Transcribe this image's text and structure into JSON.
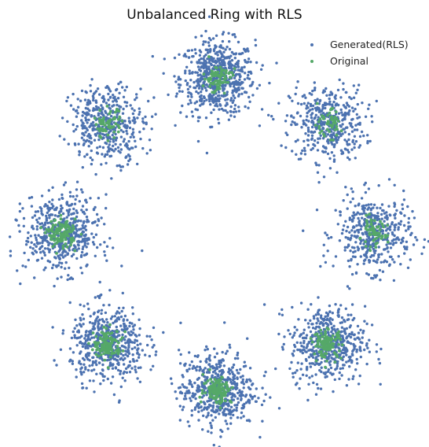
{
  "chart_data": {
    "type": "scatter",
    "title": "Unbalanced Ring with RLS",
    "xlabel": "",
    "ylabel": "",
    "axes_visible": false,
    "grid": false,
    "legend_position": "top-right",
    "xlim": [
      -1.45,
      1.45
    ],
    "ylim": [
      -1.45,
      1.45
    ],
    "ring_radius": 1.0,
    "series": [
      {
        "name": "Generated(RLS)",
        "color": "#4c72b0",
        "spread": 0.12,
        "clusters": [
          {
            "center": [
              0.0,
              1.0
            ],
            "points": 620
          },
          {
            "center": [
              0.707,
              0.707
            ],
            "points": 430
          },
          {
            "center": [
              1.0,
              0.0
            ],
            "points": 430
          },
          {
            "center": [
              0.707,
              -0.707
            ],
            "points": 520
          },
          {
            "center": [
              0.0,
              -1.0
            ],
            "points": 520
          },
          {
            "center": [
              -0.707,
              -0.707
            ],
            "points": 520
          },
          {
            "center": [
              -1.0,
              0.0
            ],
            "points": 520
          },
          {
            "center": [
              -0.707,
              0.707
            ],
            "points": 430
          }
        ],
        "outliers": [
          [
            -0.3,
            -0.93
          ]
        ]
      },
      {
        "name": "Original",
        "color": "#55a868",
        "spread": 0.045,
        "clusters": [
          {
            "center": [
              0.0,
              1.0
            ],
            "points": 80
          },
          {
            "center": [
              0.707,
              0.707
            ],
            "points": 50
          },
          {
            "center": [
              1.0,
              0.0
            ],
            "points": 60
          },
          {
            "center": [
              0.707,
              -0.707
            ],
            "points": 110
          },
          {
            "center": [
              0.0,
              -1.0
            ],
            "points": 120
          },
          {
            "center": [
              -0.707,
              -0.707
            ],
            "points": 120
          },
          {
            "center": [
              -1.0,
              0.0
            ],
            "points": 120
          },
          {
            "center": [
              -0.707,
              0.707
            ],
            "points": 60
          }
        ]
      }
    ]
  }
}
